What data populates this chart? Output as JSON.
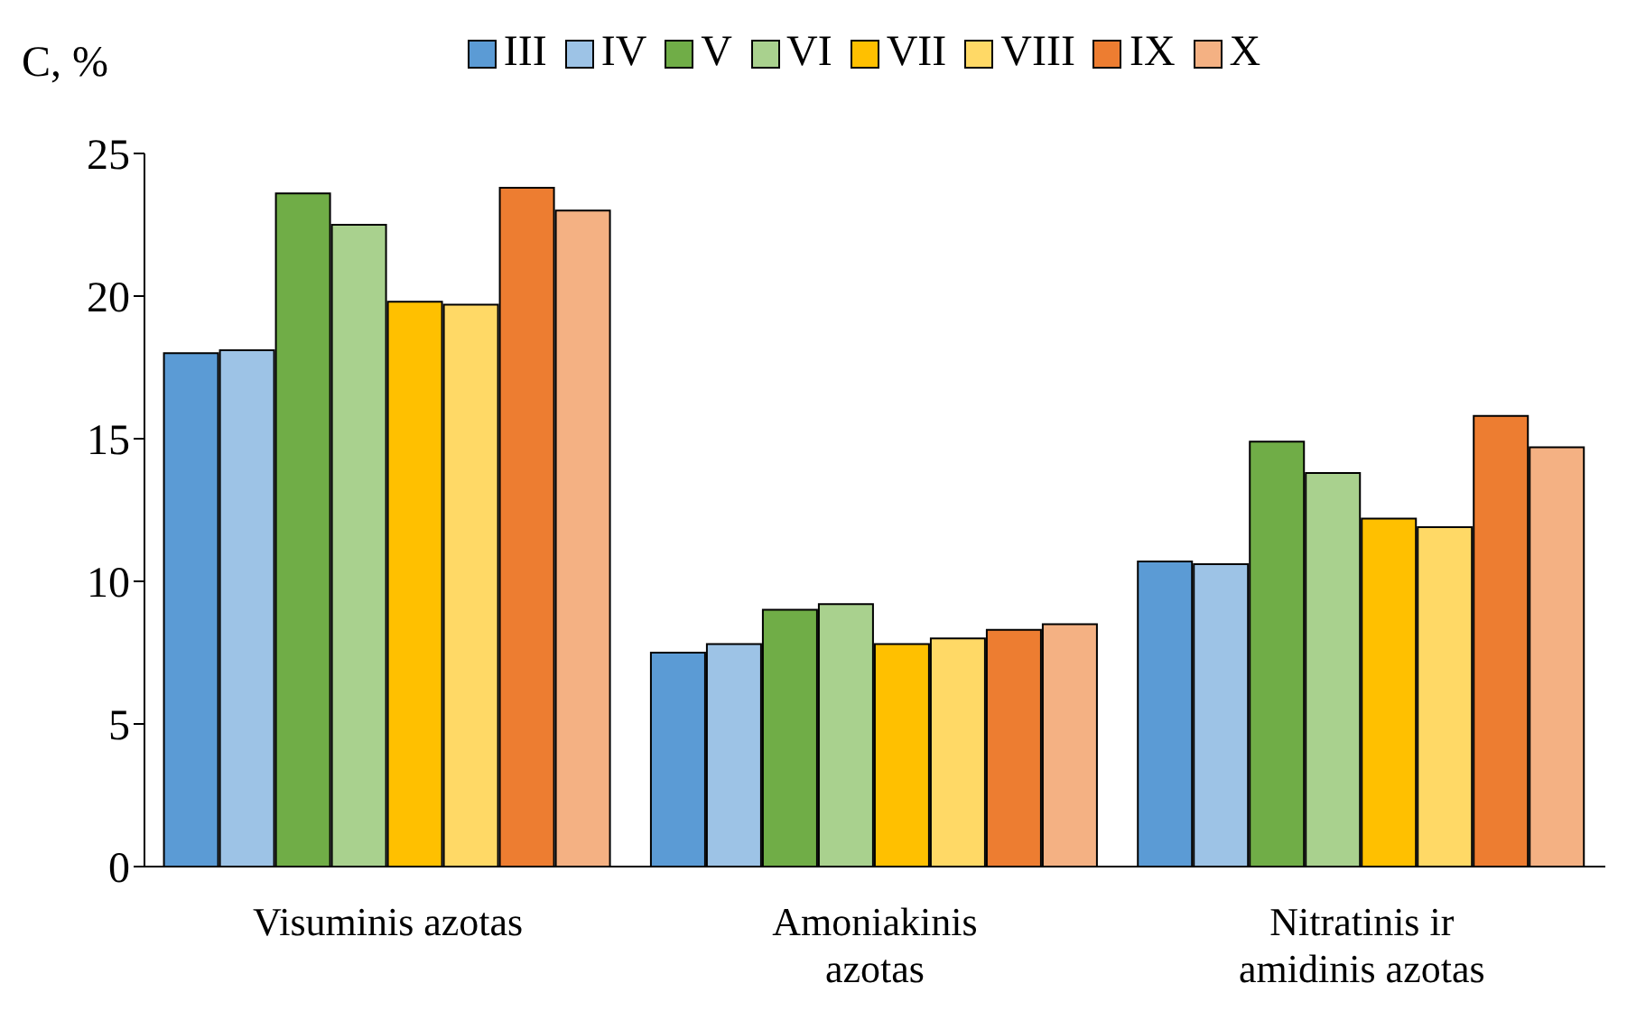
{
  "chart_data": {
    "type": "bar",
    "ylabel": "C, %",
    "categories": [
      "Visuminis azotas",
      "Amoniakinis azotas",
      "Nitratinis ir amidinis azotas"
    ],
    "series": [
      {
        "name": "III",
        "color": "#5b9bd5",
        "values": [
          18.0,
          7.5,
          10.7
        ]
      },
      {
        "name": "IV",
        "color": "#9dc3e6",
        "values": [
          18.1,
          7.8,
          10.6
        ]
      },
      {
        "name": "V",
        "color": "#70ad47",
        "values": [
          23.6,
          9.0,
          14.9
        ]
      },
      {
        "name": "VI",
        "color": "#a9d18e",
        "values": [
          22.5,
          9.2,
          13.8
        ]
      },
      {
        "name": "VII",
        "color": "#ffc000",
        "values": [
          19.8,
          7.8,
          12.2
        ]
      },
      {
        "name": "VIII",
        "color": "#ffd966",
        "values": [
          19.7,
          8.0,
          11.9
        ]
      },
      {
        "name": "IX",
        "color": "#ed7d31",
        "values": [
          23.8,
          8.3,
          15.8
        ]
      },
      {
        "name": "X",
        "color": "#f4b183",
        "values": [
          23.0,
          8.5,
          14.7
        ]
      }
    ],
    "ylim": [
      0,
      25
    ],
    "yticks": [
      0,
      5,
      10,
      15,
      20,
      25
    ],
    "grid": false,
    "legend": "top"
  }
}
